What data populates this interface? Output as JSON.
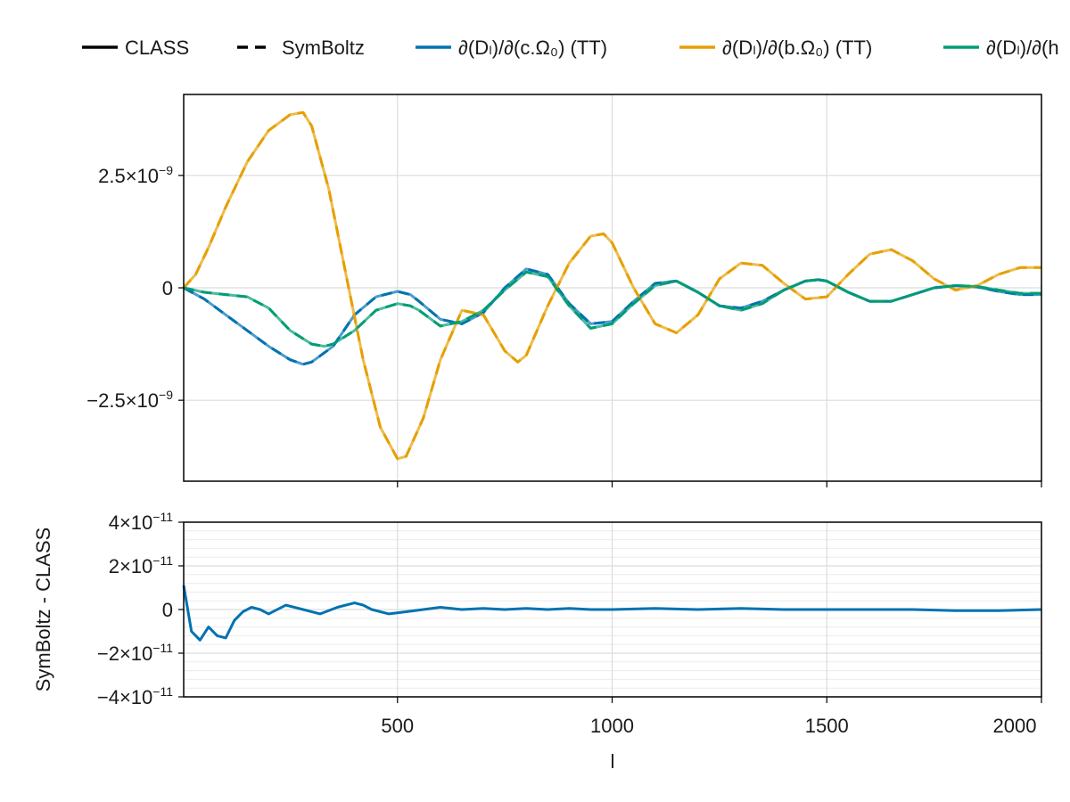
{
  "legend": {
    "items": [
      {
        "label": "CLASS",
        "style": "solid",
        "color": "#000000"
      },
      {
        "label": "SymBoltz",
        "style": "dashed",
        "color": "#000000"
      },
      {
        "label": "∂(Dₗ)/∂(c.Ω₀) (TT)",
        "style": "solid",
        "color": "#0072b2"
      },
      {
        "label": "∂(Dₗ)/∂(b.Ω₀) (TT)",
        "style": "solid",
        "color": "#e69f00"
      },
      {
        "label": "∂(Dₗ)/∂(h",
        "style": "solid",
        "color": "#009e73"
      }
    ]
  },
  "chart_data": [
    {
      "type": "line",
      "panel": "top",
      "xlim": [
        2,
        2000
      ],
      "ylim": [
        -4.3e-09,
        4.3e-09
      ],
      "xticks": [
        500,
        1000,
        1500,
        2000
      ],
      "yticks": [
        {
          "value": 2.5e-09,
          "mantissa": "2.5×10",
          "exp": "−9"
        },
        {
          "value": 0,
          "mantissa": "0",
          "exp": ""
        },
        {
          "value": -2.5e-09,
          "mantissa": "−2.5×10",
          "exp": "−9"
        }
      ],
      "grid": true,
      "series": [
        {
          "name": "∂(Dₗ)/∂(c.Ω₀) (TT)",
          "color": "#0072b2",
          "x": [
            2,
            50,
            100,
            150,
            200,
            250,
            280,
            300,
            350,
            400,
            450,
            500,
            530,
            550,
            600,
            650,
            700,
            750,
            800,
            850,
            900,
            950,
            1000,
            1050,
            1100,
            1150,
            1200,
            1250,
            1300,
            1350,
            1400,
            1450,
            1480,
            1500,
            1550,
            1600,
            1650,
            1700,
            1750,
            1800,
            1850,
            1900,
            1950,
            2000
          ],
          "y": [
            0,
            -2.5e-10,
            -6e-10,
            -9.5e-10,
            -1.3e-09,
            -1.6e-09,
            -1.7e-09,
            -1.65e-09,
            -1.3e-09,
            -6e-10,
            -2e-10,
            -8e-11,
            -1.5e-10,
            -3e-10,
            -7e-10,
            -8e-10,
            -5.5e-10,
            0,
            4.2e-10,
            3e-10,
            -3.5e-10,
            -8e-10,
            -7.5e-10,
            -3e-10,
            1e-10,
            1.5e-10,
            -1e-10,
            -4e-10,
            -4.5e-10,
            -3e-10,
            -5e-11,
            1.5e-10,
            1.8e-10,
            1.5e-10,
            -1e-10,
            -3e-10,
            -3e-10,
            -1.5e-10,
            0,
            5e-11,
            2e-11,
            -8e-11,
            -1.5e-10,
            -1.5e-10
          ]
        },
        {
          "name": "∂(Dₗ)/∂(b.Ω₀) (TT)",
          "color": "#e69f00",
          "x": [
            2,
            30,
            60,
            100,
            150,
            200,
            250,
            280,
            300,
            340,
            380,
            420,
            460,
            500,
            520,
            560,
            600,
            650,
            700,
            750,
            780,
            800,
            850,
            900,
            950,
            980,
            1000,
            1050,
            1100,
            1150,
            1200,
            1250,
            1300,
            1350,
            1400,
            1450,
            1500,
            1550,
            1600,
            1650,
            1700,
            1750,
            1800,
            1850,
            1900,
            1950,
            2000
          ],
          "y": [
            0,
            3e-10,
            9e-10,
            1.8e-09,
            2.8e-09,
            3.5e-09,
            3.85e-09,
            3.9e-09,
            3.6e-09,
            2.2e-09,
            3e-10,
            -1.6e-09,
            -3.1e-09,
            -3.8e-09,
            -3.75e-09,
            -2.9e-09,
            -1.6e-09,
            -5e-10,
            -6e-10,
            -1.4e-09,
            -1.65e-09,
            -1.5e-09,
            -4e-10,
            5.5e-10,
            1.15e-09,
            1.2e-09,
            1e-09,
            0,
            -8e-10,
            -1e-09,
            -6e-10,
            2e-10,
            5.5e-10,
            5e-10,
            1e-10,
            -2.5e-10,
            -2e-10,
            3e-10,
            7.5e-10,
            8.5e-10,
            6e-10,
            2e-10,
            -5e-11,
            5e-11,
            3e-10,
            4.5e-10,
            4.5e-10
          ]
        },
        {
          "name": "∂(Dₗ)/∂(h",
          "color": "#009e73",
          "x": [
            2,
            50,
            100,
            150,
            200,
            250,
            300,
            330,
            350,
            400,
            450,
            500,
            530,
            550,
            600,
            650,
            700,
            750,
            800,
            850,
            900,
            950,
            1000,
            1050,
            1100,
            1150,
            1200,
            1250,
            1300,
            1350,
            1400,
            1450,
            1480,
            1500,
            1550,
            1600,
            1650,
            1700,
            1750,
            1800,
            1850,
            1900,
            1950,
            2000
          ],
          "y": [
            0,
            -1e-10,
            -1.5e-10,
            -2e-10,
            -4.5e-10,
            -9.5e-10,
            -1.25e-09,
            -1.3e-09,
            -1.25e-09,
            -9.5e-10,
            -5e-10,
            -3.5e-10,
            -4e-10,
            -5e-10,
            -8.5e-10,
            -7.5e-10,
            -5e-10,
            -5e-11,
            3.5e-10,
            2.5e-10,
            -4e-10,
            -9e-10,
            -8e-10,
            -3.5e-10,
            5e-11,
            1.5e-10,
            -1e-10,
            -4e-10,
            -5e-10,
            -3.5e-10,
            -5e-11,
            1.5e-10,
            1.8e-10,
            1.5e-10,
            -1e-10,
            -3e-10,
            -3e-10,
            -1.5e-10,
            0,
            5e-11,
            3e-11,
            -5e-11,
            -1.2e-10,
            -1.2e-10
          ]
        }
      ]
    },
    {
      "type": "line",
      "panel": "bottom",
      "xlabel": "l",
      "ylabel": "SymBoltz - CLASS",
      "xlim": [
        2,
        2000
      ],
      "ylim": [
        -4e-11,
        4e-11
      ],
      "xticks": [
        500,
        1000,
        1500,
        2000
      ],
      "yticks": [
        {
          "value": 4e-11,
          "mantissa": "4×10",
          "exp": "−11"
        },
        {
          "value": 2e-11,
          "mantissa": "2×10",
          "exp": "−11"
        },
        {
          "value": 0,
          "mantissa": "0",
          "exp": ""
        },
        {
          "value": -2e-11,
          "mantissa": "−2×10",
          "exp": "−11"
        },
        {
          "value": -4e-11,
          "mantissa": "−4×10",
          "exp": "−11"
        }
      ],
      "grid": true,
      "series": [
        {
          "name": "∂(Dₗ)/∂(c.Ω₀) (TT)",
          "color": "#0072b2",
          "x": [
            2,
            20,
            40,
            60,
            80,
            100,
            120,
            140,
            160,
            180,
            200,
            240,
            280,
            320,
            360,
            400,
            420,
            440,
            480,
            520,
            560,
            600,
            650,
            700,
            750,
            800,
            850,
            900,
            950,
            1000,
            1100,
            1200,
            1300,
            1400,
            1500,
            1600,
            1700,
            1800,
            1900,
            2000
          ],
          "y": [
            1.1e-11,
            -1e-11,
            -1.4e-11,
            -8e-12,
            -1.2e-11,
            -1.3e-11,
            -5e-12,
            -1e-12,
            1e-12,
            0,
            -2e-12,
            2e-12,
            0,
            -2e-12,
            1e-12,
            3e-12,
            2e-12,
            0,
            -2e-12,
            -1e-12,
            0,
            1e-12,
            0,
            5e-13,
            0,
            5e-13,
            0,
            5e-13,
            0,
            0,
            5e-13,
            0,
            5e-13,
            0,
            0,
            0,
            0,
            -5e-13,
            -5e-13,
            0
          ]
        }
      ]
    }
  ]
}
